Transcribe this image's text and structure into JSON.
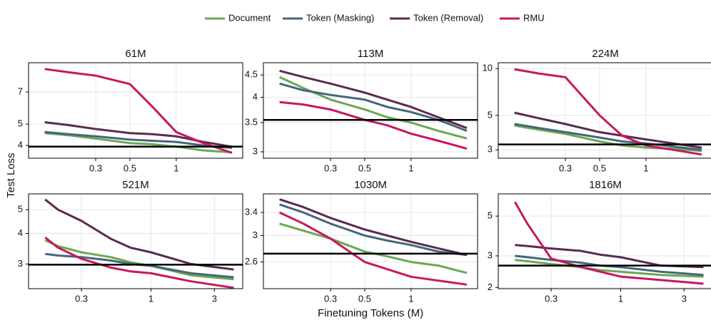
{
  "chart_data": [
    {
      "type": "line",
      "title": "61M",
      "ylabel": "Test Loss",
      "xscale": "log",
      "yscale": "log",
      "grid": true,
      "x": [
        0.14,
        0.2,
        0.3,
        0.5,
        0.7,
        1,
        1.5,
        2.3
      ],
      "xlim": [
        0.11,
        2.7
      ],
      "xticks": [
        0.3,
        0.5,
        1
      ],
      "ylim": [
        3.5,
        9.5
      ],
      "yticks": [
        4,
        5,
        7
      ],
      "hline": 3.95,
      "series": [
        {
          "name": "Document",
          "color": "#6aa84f",
          "values": [
            4.55,
            4.45,
            4.3,
            4.1,
            4.05,
            3.95,
            3.8,
            3.72
          ]
        },
        {
          "name": "Token (Masking)",
          "color": "#46657d",
          "values": [
            4.6,
            4.5,
            4.4,
            4.25,
            4.2,
            4.15,
            4.0,
            3.9
          ]
        },
        {
          "name": "Token (Removal)",
          "color": "#5b2a50",
          "values": [
            5.1,
            4.95,
            4.75,
            4.55,
            4.5,
            4.4,
            4.15,
            3.95
          ]
        },
        {
          "name": "RMU",
          "color": "#c8175d",
          "values": [
            8.9,
            8.6,
            8.3,
            7.6,
            6.0,
            4.6,
            4.1,
            3.7
          ]
        }
      ]
    },
    {
      "type": "line",
      "title": "113M",
      "xscale": "log",
      "yscale": "log",
      "grid": true,
      "x": [
        0.14,
        0.2,
        0.3,
        0.5,
        0.7,
        1,
        1.5,
        2.3
      ],
      "xlim": [
        0.11,
        2.7
      ],
      "xticks": [
        0.3,
        0.5,
        1
      ],
      "ylim": [
        2.9,
        4.8
      ],
      "yticks": [
        3,
        3.5,
        4,
        4.5
      ],
      "hline": 3.55,
      "series": [
        {
          "color": "#6aa84f",
          "values": [
            4.45,
            4.2,
            3.95,
            3.75,
            3.6,
            3.5,
            3.35,
            3.22
          ]
        },
        {
          "color": "#46657d",
          "values": [
            4.3,
            4.15,
            4.05,
            3.95,
            3.8,
            3.7,
            3.55,
            3.35
          ]
        },
        {
          "color": "#5b2a50",
          "values": [
            4.6,
            4.45,
            4.3,
            4.1,
            3.95,
            3.8,
            3.6,
            3.4
          ]
        },
        {
          "color": "#c8175d",
          "values": [
            3.9,
            3.85,
            3.75,
            3.55,
            3.45,
            3.3,
            3.18,
            3.05
          ]
        }
      ]
    },
    {
      "type": "line",
      "title": "224M",
      "xscale": "log",
      "yscale": "log",
      "grid": true,
      "x": [
        0.14,
        0.2,
        0.3,
        0.5,
        0.7,
        1,
        1.5,
        2.3
      ],
      "xlim": [
        0.11,
        2.7
      ],
      "xticks": [
        0.3,
        0.5,
        1
      ],
      "ylim": [
        2.65,
        10.9
      ],
      "yticks": [
        3,
        5,
        10
      ],
      "hline": 3.25,
      "series": [
        {
          "color": "#6aa84f",
          "values": [
            4.3,
            4.05,
            3.8,
            3.4,
            3.2,
            3.1,
            3.05,
            2.95
          ]
        },
        {
          "color": "#46657d",
          "values": [
            4.4,
            4.15,
            3.9,
            3.6,
            3.4,
            3.3,
            3.15,
            3.0
          ]
        },
        {
          "color": "#5b2a50",
          "values": [
            5.2,
            4.8,
            4.4,
            3.9,
            3.7,
            3.5,
            3.3,
            3.1
          ]
        },
        {
          "color": "#c8175d",
          "values": [
            9.9,
            9.3,
            8.8,
            5.0,
            3.7,
            3.2,
            3.0,
            2.8
          ]
        }
      ]
    },
    {
      "type": "line",
      "title": "521M",
      "xscale": "log",
      "yscale": "log",
      "grid": true,
      "x": [
        0.16,
        0.2,
        0.3,
        0.5,
        0.7,
        1,
        2,
        4.2
      ],
      "xlim": [
        0.12,
        4.9
      ],
      "xticks": [
        0.3,
        1,
        3
      ],
      "ylim": [
        2.38,
        5.8
      ],
      "yticks": [
        3,
        4,
        5
      ],
      "hline": 2.98,
      "series": [
        {
          "color": "#6aa84f",
          "values": [
            3.75,
            3.55,
            3.35,
            3.2,
            3.05,
            2.95,
            2.7,
            2.6
          ]
        },
        {
          "color": "#46657d",
          "values": [
            3.3,
            3.25,
            3.2,
            3.1,
            3.0,
            2.95,
            2.75,
            2.65
          ]
        },
        {
          "color": "#5b2a50",
          "values": [
            5.5,
            5.0,
            4.5,
            3.8,
            3.5,
            3.35,
            3.0,
            2.85
          ]
        },
        {
          "color": "#c8175d",
          "values": [
            3.85,
            3.5,
            3.15,
            2.9,
            2.8,
            2.75,
            2.55,
            2.4
          ]
        }
      ]
    },
    {
      "type": "line",
      "title": "1030M",
      "xlabel": "Finetuning Tokens (M)",
      "xscale": "log",
      "yscale": "log",
      "grid": true,
      "x": [
        0.14,
        0.2,
        0.3,
        0.5,
        0.7,
        1,
        1.5,
        2.3
      ],
      "xlim": [
        0.11,
        2.7
      ],
      "xticks": [
        0.3,
        0.5,
        1
      ],
      "ylim": [
        2.25,
        3.76
      ],
      "yticks": [
        2.6,
        3,
        3.4
      ],
      "hline": 2.72,
      "series": [
        {
          "color": "#6aa84f",
          "values": [
            3.2,
            3.08,
            2.95,
            2.75,
            2.68,
            2.6,
            2.55,
            2.45
          ]
        },
        {
          "color": "#46657d",
          "values": [
            3.55,
            3.4,
            3.2,
            3.0,
            2.92,
            2.85,
            2.75,
            2.7
          ]
        },
        {
          "color": "#5b2a50",
          "values": [
            3.65,
            3.5,
            3.3,
            3.1,
            3.0,
            2.9,
            2.8,
            2.7
          ]
        },
        {
          "color": "#c8175d",
          "values": [
            3.4,
            3.2,
            2.95,
            2.6,
            2.5,
            2.4,
            2.35,
            2.3
          ]
        }
      ]
    },
    {
      "type": "line",
      "title": "1816M",
      "xscale": "log",
      "yscale": "log",
      "grid": true,
      "x": [
        0.16,
        0.2,
        0.3,
        0.5,
        0.7,
        1,
        2,
        4.2
      ],
      "xlim": [
        0.12,
        4.9
      ],
      "xticks": [
        0.3,
        1,
        3
      ],
      "ylim": [
        1.97,
        6.65
      ],
      "yticks": [
        2,
        3,
        5
      ],
      "hline": 2.65,
      "series": [
        {
          "color": "#6aa84f",
          "values": [
            2.85,
            2.8,
            2.7,
            2.6,
            2.5,
            2.45,
            2.35,
            2.3
          ]
        },
        {
          "color": "#46657d",
          "values": [
            3.0,
            2.95,
            2.85,
            2.75,
            2.65,
            2.6,
            2.45,
            2.35
          ]
        },
        {
          "color": "#5b2a50",
          "values": [
            3.45,
            3.4,
            3.3,
            3.2,
            3.05,
            2.95,
            2.65,
            2.6
          ]
        },
        {
          "color": "#c8175d",
          "values": [
            6.0,
            4.5,
            2.9,
            2.6,
            2.45,
            2.3,
            2.2,
            2.1
          ]
        }
      ]
    }
  ]
}
